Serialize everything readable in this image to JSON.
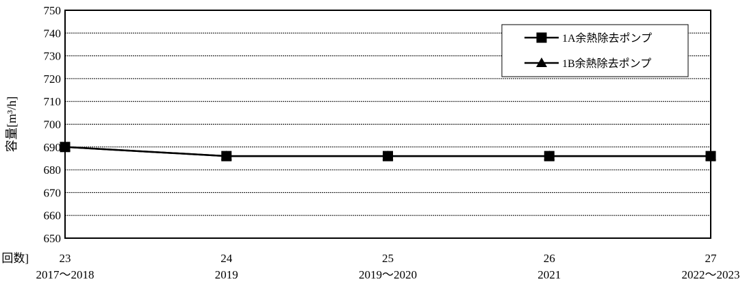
{
  "chart_data": {
    "type": "line",
    "ylabel": "容量[m³/h]",
    "xlabel_prefix": "回数]",
    "categories": [
      {
        "count": "23",
        "year": "2017～2018"
      },
      {
        "count": "24",
        "year": "2019"
      },
      {
        "count": "25",
        "year": "2019～2020"
      },
      {
        "count": "26",
        "year": "2021"
      },
      {
        "count": "27",
        "year": "2022～2023"
      }
    ],
    "series": [
      {
        "name": "1A余熱除去ポンプ",
        "marker": "square",
        "color": "#000000",
        "values": [
          690,
          686,
          686,
          686,
          686
        ]
      },
      {
        "name": "1B余熱除去ポンプ",
        "marker": "triangle",
        "color": "#000000",
        "values": [
          690,
          686,
          686,
          686,
          686
        ]
      }
    ],
    "ylim": [
      650,
      750
    ],
    "yticks": [
      650,
      660,
      670,
      680,
      690,
      700,
      710,
      720,
      730,
      740,
      750
    ],
    "grid": true,
    "legend_position": "top-right"
  }
}
